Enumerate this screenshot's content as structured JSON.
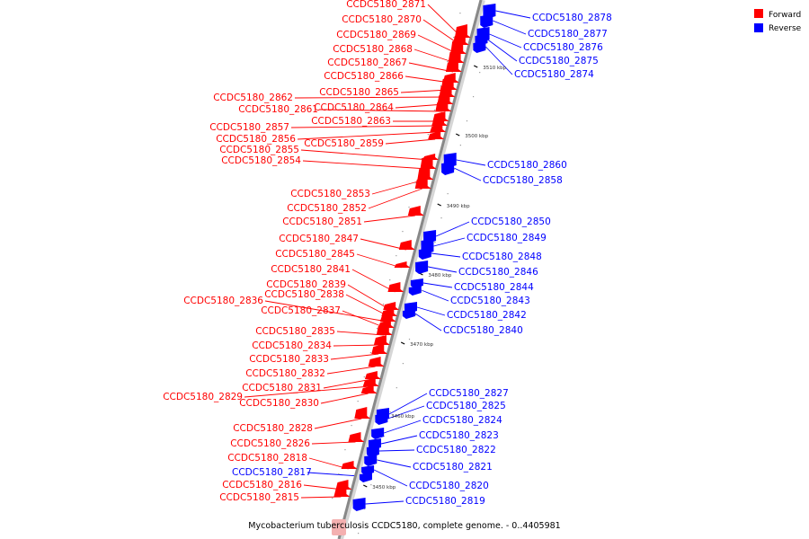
{
  "caption": "Mycobacterium tuberculosis CCDC5180, complete genome. - 0..4405981",
  "legend": {
    "forward": {
      "label": "Forward",
      "color": "#ff0000"
    },
    "reverse": {
      "label": "Reverse",
      "color": "#0000ff"
    }
  },
  "axis_color": "#888888",
  "ticks": [
    "3510 kbp",
    "3500 kbp",
    "3490 kbp",
    "3480 kbp",
    "3470 kbp",
    "3460 kbp",
    "3450 kbp"
  ],
  "forward_genes": [
    "CCDC5180_2871",
    "CCDC5180_2870",
    "CCDC5180_2869",
    "CCDC5180_2868",
    "CCDC5180_2867",
    "CCDC5180_2866",
    "CCDC5180_2865",
    "CCDC5180_2862",
    "CCDC5180_2864",
    "CCDC5180_2861",
    "CCDC5180_2863",
    "CCDC5180_2857",
    "CCDC5180_2856",
    "CCDC5180_2859",
    "CCDC5180_2855",
    "CCDC5180_2854",
    "CCDC5180_2853",
    "CCDC5180_2852",
    "CCDC5180_2851",
    "CCDC5180_2847",
    "CCDC5180_2845",
    "CCDC5180_2841",
    "CCDC5180_2839",
    "CCDC5180_2838",
    "CCDC5180_2836",
    "CCDC5180_2837",
    "CCDC5180_2835",
    "CCDC5180_2834",
    "CCDC5180_2833",
    "CCDC5180_2832",
    "CCDC5180_2831",
    "CCDC5180_2829",
    "CCDC5180_2830",
    "CCDC5180_2828",
    "CCDC5180_2826",
    "CCDC5180_2818",
    "CCDC5180_2816",
    "CCDC5180_2815"
  ],
  "reverse_genes": [
    "CCDC5180_2878",
    "CCDC5180_2877",
    "CCDC5180_2876",
    "CCDC5180_2875",
    "CCDC5180_2874",
    "CCDC5180_2860",
    "CCDC5180_2858",
    "CCDC5180_2850",
    "CCDC5180_2849",
    "CCDC5180_2848",
    "CCDC5180_2846",
    "CCDC5180_2844",
    "CCDC5180_2843",
    "CCDC5180_2842",
    "CCDC5180_2840",
    "CCDC5180_2827",
    "CCDC5180_2825",
    "CCDC5180_2824",
    "CCDC5180_2823",
    "CCDC5180_2822",
    "CCDC5180_2821",
    "CCDC5180_2820",
    "CCDC5180_2819",
    "CCDC5180_2817"
  ]
}
